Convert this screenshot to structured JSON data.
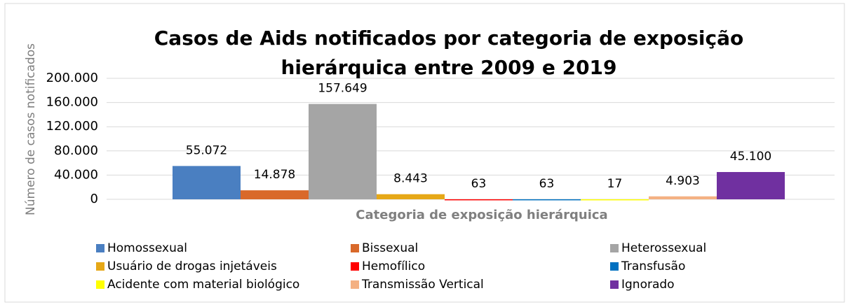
{
  "chart_data": {
    "type": "bar",
    "title": "Casos de Aids notificados por categoria de exposição hierárquica entre 2009 e 2019",
    "xlabel": "Categoria de exposição hierárquica",
    "ylabel": "Número de casos notificados",
    "series": [
      {
        "name": "Homossexual",
        "color": "#4a7fc1",
        "values": [
          55072
        ],
        "value_labels": [
          "55.072"
        ]
      },
      {
        "name": "Bissexual",
        "color": "#d9692a",
        "values": [
          14878
        ],
        "value_labels": [
          "14.878"
        ]
      },
      {
        "name": "Heterossexual",
        "color": "#a5a5a5",
        "values": [
          157649
        ],
        "value_labels": [
          "157.649"
        ]
      },
      {
        "name": "Usuário de drogas injetáveis",
        "color": "#e6a817",
        "values": [
          8443
        ],
        "value_labels": [
          "8.443"
        ]
      },
      {
        "name": "Hemofílico",
        "color": "#ff0000",
        "values": [
          63
        ]
      },
      {
        "name": "Transfusão",
        "color": "#0070c0",
        "values": [
          63
        ]
      },
      {
        "name": "Acidente com material biológico",
        "color": "#ffff00",
        "values": [
          17
        ]
      },
      {
        "name": "Transmissão Vertical",
        "color": "#f4b183",
        "values": [
          4903
        ],
        "value_labels": [
          "4.903"
        ]
      },
      {
        "name": "Ignorado",
        "color": "#7030a0",
        "values": [
          45100
        ],
        "value_labels": [
          "45.100"
        ]
      }
    ],
    "ylim": [
      0,
      200000
    ],
    "yticks": [
      0,
      {
        "value": 40000,
        "label": "40.000"
      },
      {
        "value": 80000,
        "label": "80.000"
      },
      {
        "value": 120000,
        "label": "120.000"
      },
      {
        "value": 160000,
        "label": "160.000"
      },
      {
        "value": 200000,
        "label": "200.000"
      }
    ],
    "grid": true,
    "legend": "bottom"
  }
}
